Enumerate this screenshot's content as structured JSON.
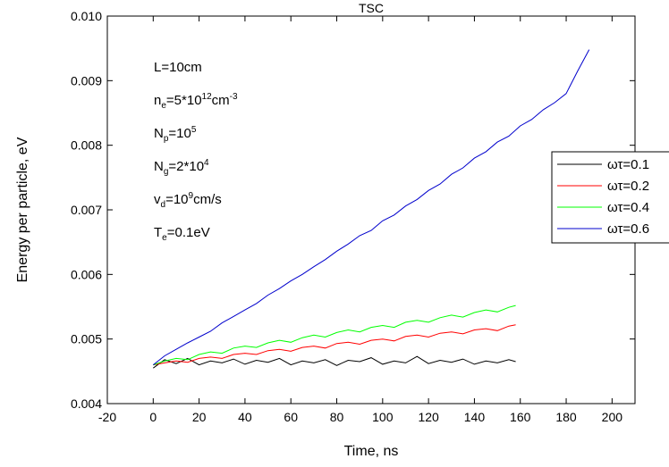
{
  "chart_data": {
    "type": "line",
    "title": "TSC",
    "x_label": "Time, ns",
    "y_label": "Energy per particle, eV",
    "xlim": [
      -20,
      210
    ],
    "ylim": [
      0.004,
      0.01
    ],
    "xticks": [
      -20,
      0,
      20,
      40,
      60,
      80,
      100,
      120,
      140,
      160,
      180,
      200
    ],
    "yticks": [
      0.004,
      0.005,
      0.006,
      0.007,
      0.008,
      0.009,
      {
        "value": 0.01,
        "label": "0.010"
      }
    ],
    "legend": "right",
    "annotations": [
      [
        "L=10cm"
      ],
      [
        "n",
        {
          "sub": "e"
        },
        "=5*10",
        {
          "sup": "12"
        },
        "cm",
        {
          "sup": "-3"
        }
      ],
      [
        "N",
        {
          "sub": "p"
        },
        "=10",
        {
          "sup": "5"
        }
      ],
      [
        "N",
        {
          "sub": "g"
        },
        "=2*10",
        {
          "sup": "4"
        }
      ],
      [
        "v",
        {
          "sub": "d"
        },
        "=10",
        {
          "sup": "9"
        },
        "cm/s"
      ],
      [
        "T",
        {
          "sub": "e"
        },
        "=0.1eV"
      ]
    ],
    "series": [
      {
        "name": "ωτ=0.1",
        "color": "#000000",
        "x": [
          0,
          5,
          10,
          15,
          20,
          25,
          30,
          35,
          40,
          45,
          50,
          55,
          60,
          65,
          70,
          75,
          80,
          85,
          90,
          95,
          100,
          105,
          110,
          115,
          120,
          125,
          130,
          135,
          140,
          145,
          150,
          155,
          158
        ],
        "values": [
          0.00455,
          0.00468,
          0.00462,
          0.0047,
          0.0046,
          0.00466,
          0.00463,
          0.00469,
          0.00461,
          0.00467,
          0.00464,
          0.0047,
          0.0046,
          0.00466,
          0.00463,
          0.00468,
          0.00459,
          0.00467,
          0.00465,
          0.00471,
          0.00461,
          0.00466,
          0.00463,
          0.00473,
          0.00462,
          0.00467,
          0.00464,
          0.00469,
          0.00461,
          0.00466,
          0.00463,
          0.00468,
          0.00465
        ]
      },
      {
        "name": "ωτ=0.2",
        "color": "#ff0000",
        "x": [
          0,
          5,
          10,
          15,
          20,
          25,
          30,
          35,
          40,
          45,
          50,
          55,
          60,
          65,
          70,
          75,
          80,
          85,
          90,
          95,
          100,
          105,
          110,
          115,
          120,
          125,
          130,
          135,
          140,
          145,
          150,
          155,
          158
        ],
        "values": [
          0.0046,
          0.00463,
          0.00466,
          0.00464,
          0.0047,
          0.00472,
          0.0047,
          0.00476,
          0.00478,
          0.00476,
          0.00482,
          0.00484,
          0.00481,
          0.00487,
          0.00489,
          0.00486,
          0.00493,
          0.00495,
          0.00492,
          0.00498,
          0.005,
          0.00497,
          0.00504,
          0.00506,
          0.00503,
          0.00509,
          0.00511,
          0.00508,
          0.00514,
          0.00516,
          0.00513,
          0.0052,
          0.00522
        ]
      },
      {
        "name": "ωτ=0.4",
        "color": "#00ff00",
        "x": [
          0,
          5,
          10,
          15,
          20,
          25,
          30,
          35,
          40,
          45,
          50,
          55,
          60,
          65,
          70,
          75,
          80,
          85,
          90,
          95,
          100,
          105,
          110,
          115,
          120,
          125,
          130,
          135,
          140,
          145,
          150,
          155,
          158
        ],
        "values": [
          0.0046,
          0.00466,
          0.0047,
          0.00468,
          0.00476,
          0.0048,
          0.00478,
          0.00486,
          0.00489,
          0.00487,
          0.00494,
          0.00498,
          0.00495,
          0.00502,
          0.00506,
          0.00503,
          0.0051,
          0.00514,
          0.00511,
          0.00518,
          0.00521,
          0.00518,
          0.00526,
          0.00529,
          0.00526,
          0.00533,
          0.00537,
          0.00534,
          0.00541,
          0.00545,
          0.00542,
          0.00549,
          0.00552
        ]
      },
      {
        "name": "ωτ=0.6",
        "color": "#0000cc",
        "x": [
          0,
          5,
          10,
          15,
          20,
          25,
          30,
          35,
          40,
          45,
          50,
          55,
          60,
          65,
          70,
          75,
          80,
          85,
          90,
          95,
          100,
          105,
          110,
          115,
          120,
          125,
          130,
          135,
          140,
          145,
          150,
          155,
          160,
          165,
          170,
          175,
          180,
          185,
          190
        ],
        "values": [
          0.0046,
          0.00474,
          0.00484,
          0.00494,
          0.00503,
          0.00512,
          0.00525,
          0.00535,
          0.00545,
          0.00555,
          0.00568,
          0.00578,
          0.0059,
          0.006,
          0.00612,
          0.00623,
          0.00636,
          0.00647,
          0.0066,
          0.00668,
          0.00683,
          0.00692,
          0.00706,
          0.00716,
          0.0073,
          0.0074,
          0.00755,
          0.00765,
          0.0078,
          0.0079,
          0.00805,
          0.00814,
          0.0083,
          0.0084,
          0.00855,
          0.00866,
          0.0088,
          0.00915,
          0.00948
        ]
      }
    ]
  }
}
